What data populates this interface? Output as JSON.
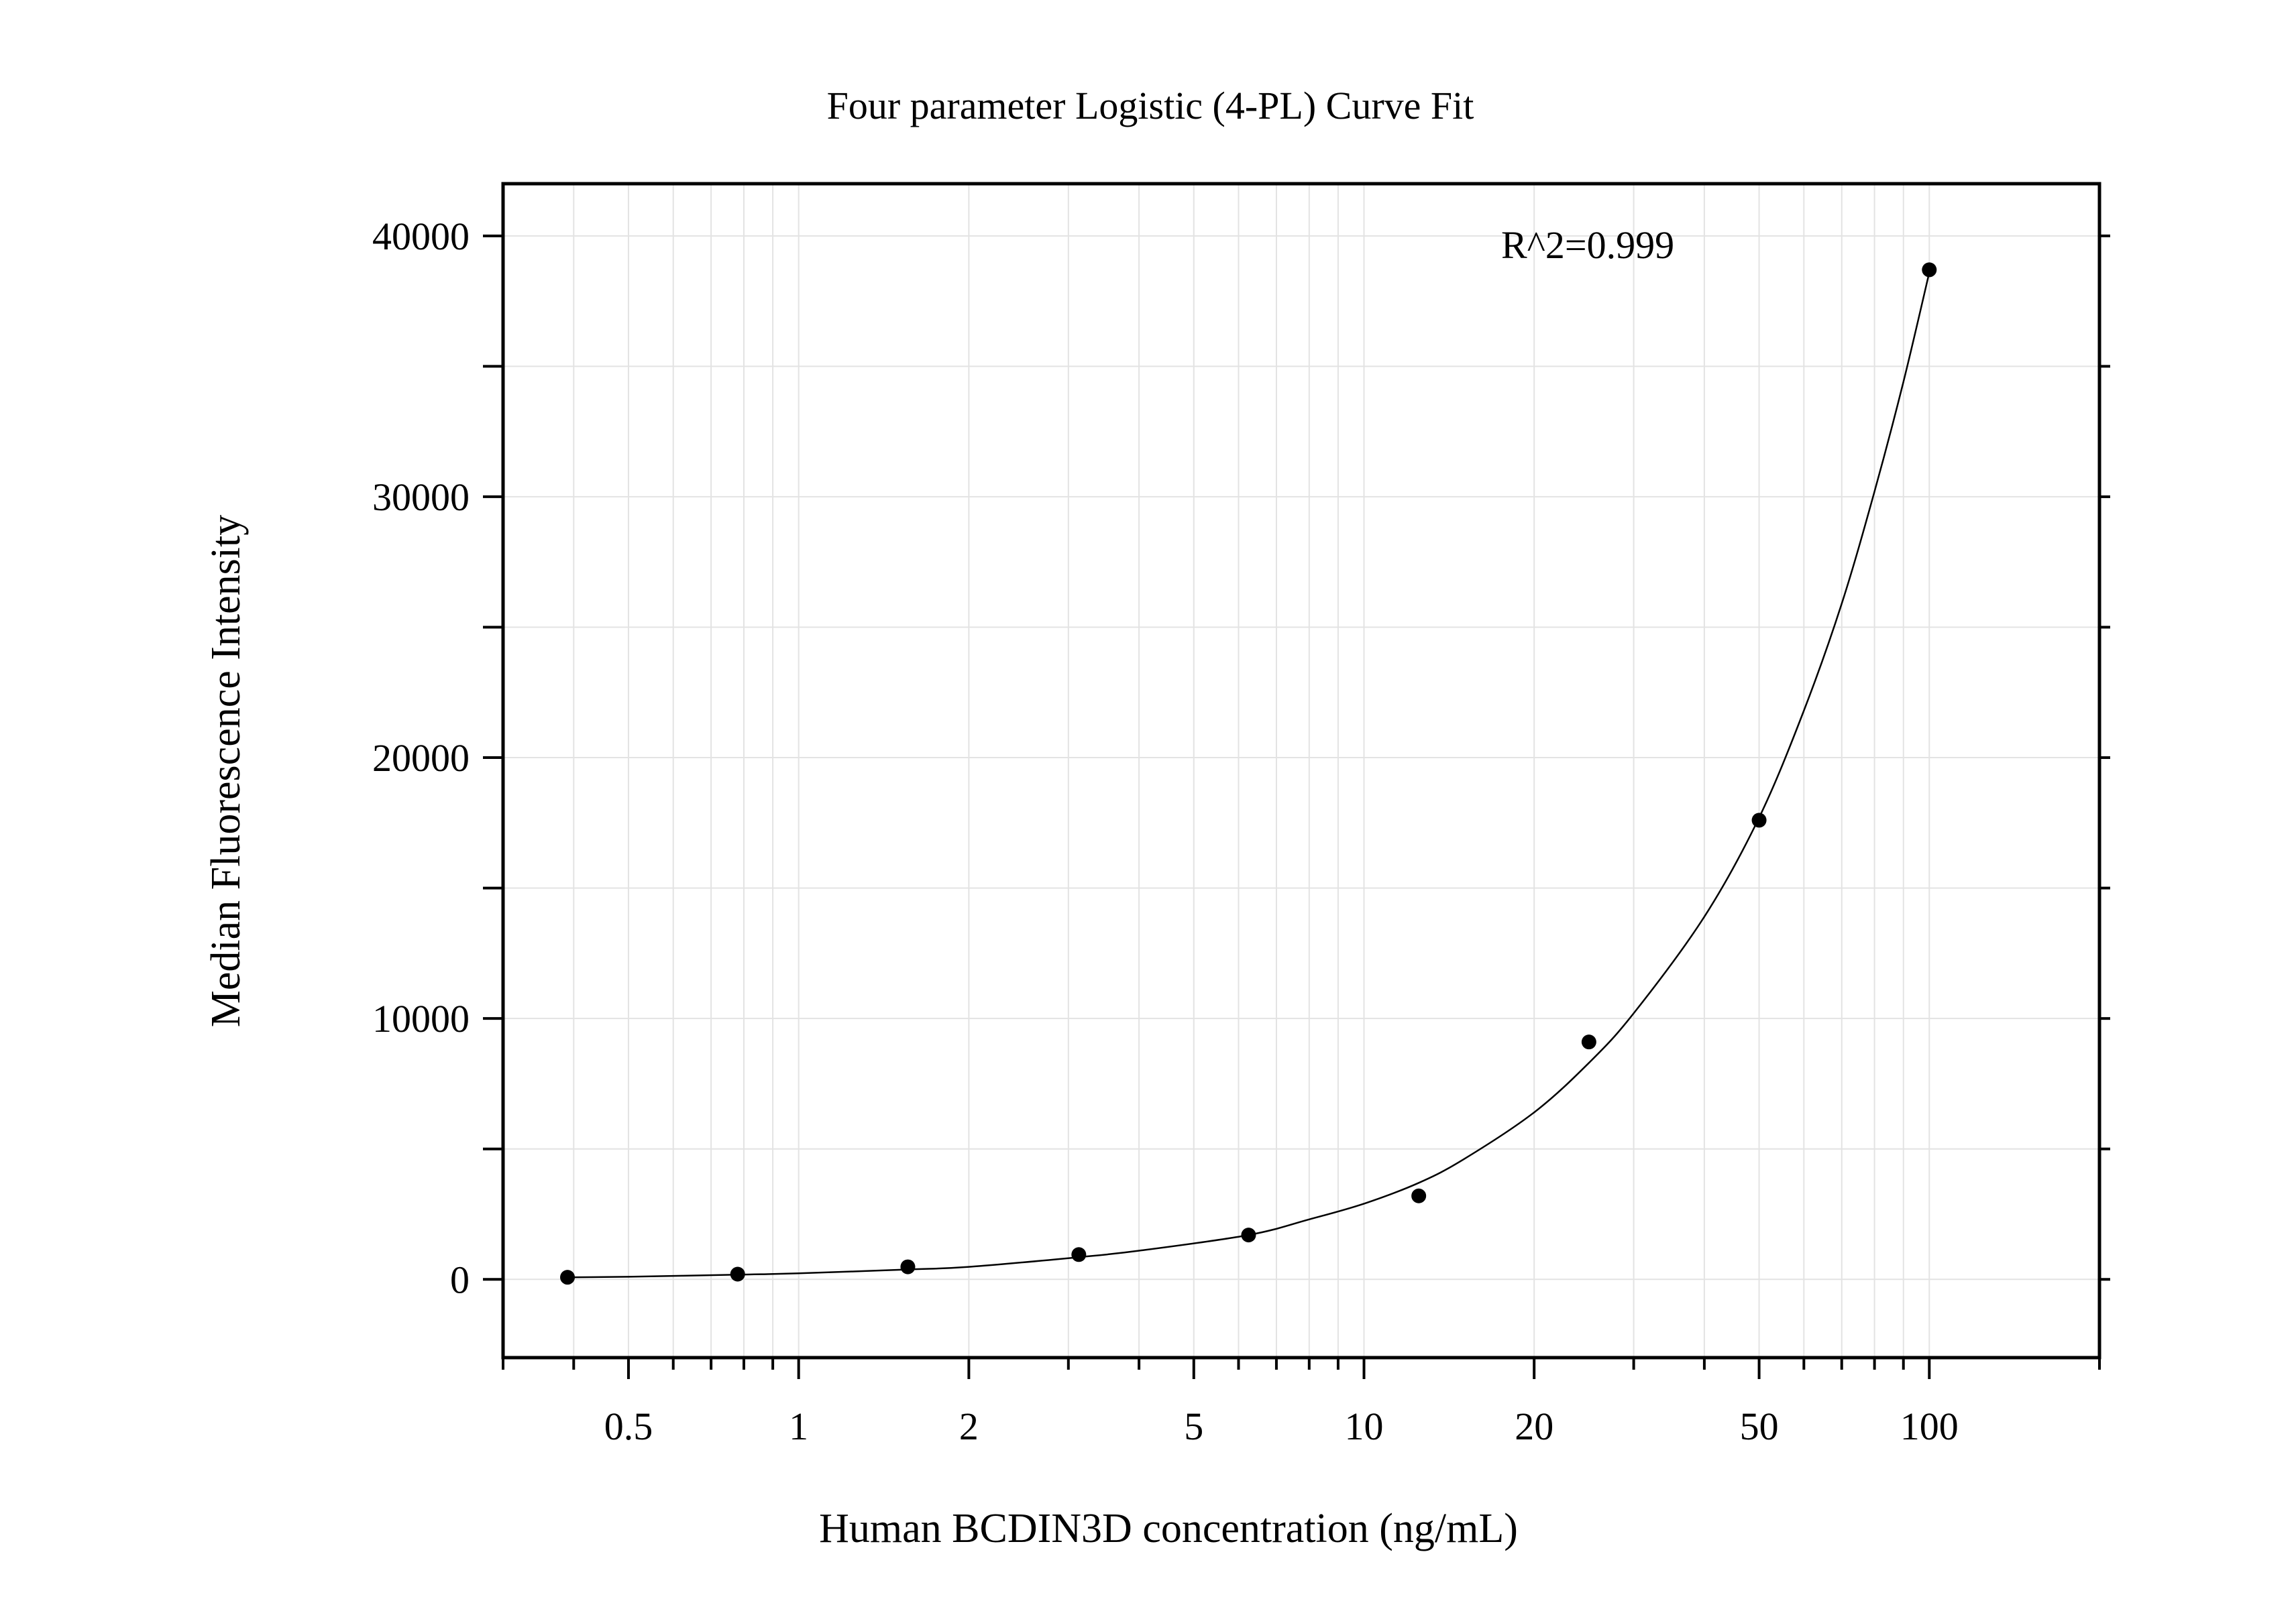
{
  "chart_data": {
    "type": "scatter",
    "title": "Four parameter Logistic (4-PL) Curve Fit",
    "xlabel": "Human BCDIN3D concentration (ng/mL)",
    "ylabel": "Median Fluorescence Intensity",
    "x_scale": "log",
    "xlim": [
      0.3,
      200
    ],
    "ylim": [
      -3000,
      42000
    ],
    "x_ticks": [
      0.5,
      1,
      2,
      5,
      10,
      20,
      50,
      100
    ],
    "x_tick_labels": [
      "0.5",
      "1",
      "2",
      "5",
      "10",
      "20",
      "50",
      "100"
    ],
    "y_ticks": [
      0,
      10000,
      20000,
      30000,
      40000
    ],
    "y_tick_labels": [
      "0",
      "10000",
      "20000",
      "30000",
      "40000"
    ],
    "grid": true,
    "legend": "none",
    "annotation": "R^2=0.999",
    "colors": {
      "points": "#000000",
      "curve": "#000000",
      "grid": "#e3e3e3",
      "frame": "#000000"
    },
    "series": [
      {
        "type": "scatter",
        "x": [
          0.39,
          0.78,
          1.56,
          3.13,
          6.25,
          12.5,
          25,
          50,
          100
        ],
        "y": [
          80,
          200,
          480,
          950,
          1700,
          3200,
          9100,
          17600,
          38700
        ]
      }
    ],
    "fit_curve": {
      "model": "4-PL",
      "points_x": [
        0.39,
        0.5,
        0.78,
        1,
        1.56,
        2,
        3.13,
        4,
        6.25,
        8,
        10,
        12.5,
        15,
        20,
        25,
        30,
        40,
        50,
        60,
        70,
        80,
        90,
        100
      ],
      "points_y": [
        80,
        100,
        180,
        230,
        380,
        480,
        850,
        1100,
        1700,
        2300,
        2900,
        3700,
        4600,
        6400,
        8300,
        10200,
        13900,
        17700,
        21800,
        25900,
        30200,
        34400,
        38600
      ]
    }
  }
}
